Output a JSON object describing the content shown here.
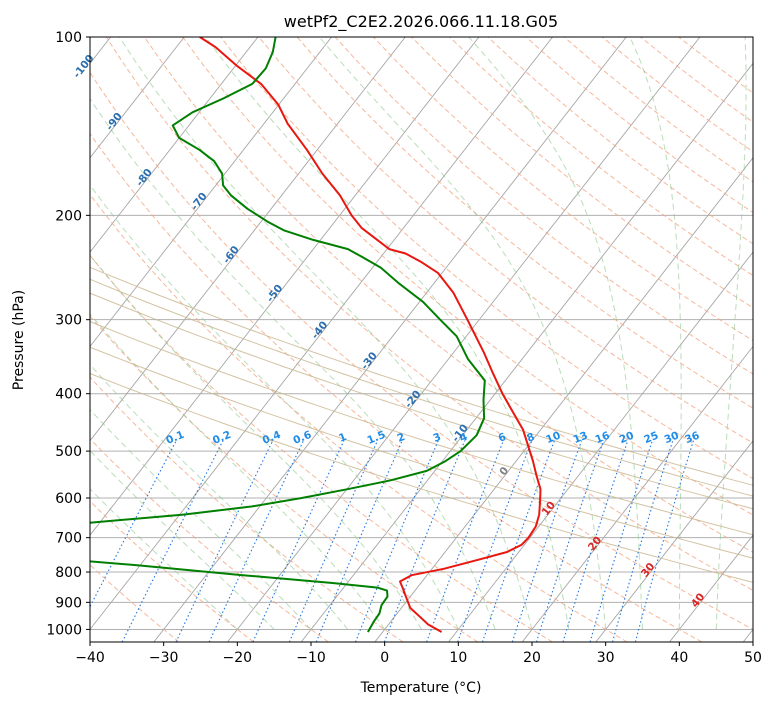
{
  "chart_data": {
    "type": "line",
    "title": "wetPf2_C2E2.2026.066.11.18.G05",
    "xlabel": "Temperature (°C)",
    "ylabel": "Pressure (hPa)",
    "xlim": [
      -40,
      50
    ],
    "ylim": [
      1050,
      100
    ],
    "y_scale": "log",
    "skew_deg_per_decade": 62.8,
    "grid": true,
    "x_ticks": [
      "−40",
      "−30",
      "−20",
      "−10",
      "0",
      "10",
      "20",
      "30",
      "40",
      "50"
    ],
    "x_tick_values": [
      -40,
      -30,
      -20,
      -10,
      0,
      10,
      20,
      30,
      40,
      50
    ],
    "y_ticks": [
      "100",
      "200",
      "300",
      "400",
      "500",
      "600",
      "700",
      "800",
      "900",
      "1000"
    ],
    "y_tick_values": [
      100,
      200,
      300,
      400,
      500,
      600,
      700,
      800,
      900,
      1000
    ],
    "series": [
      {
        "kind": "temperature",
        "color": "#e8170f",
        "points": [
          [
            1010,
            8.0
          ],
          [
            980,
            5.3
          ],
          [
            950,
            3.3
          ],
          [
            920,
            1.2
          ],
          [
            880,
            -0.6
          ],
          [
            850,
            -2.0
          ],
          [
            830,
            -3.0
          ],
          [
            810,
            -2.1
          ],
          [
            790,
            1.6
          ],
          [
            760,
            5.7
          ],
          [
            740,
            8.4
          ],
          [
            720,
            9.6
          ],
          [
            700,
            9.8
          ],
          [
            670,
            9.6
          ],
          [
            640,
            8.8
          ],
          [
            610,
            7.6
          ],
          [
            580,
            6.3
          ],
          [
            550,
            4.3
          ],
          [
            520,
            2.3
          ],
          [
            500,
            0.8
          ],
          [
            460,
            -2.4
          ],
          [
            430,
            -5.6
          ],
          [
            400,
            -9.0
          ],
          [
            370,
            -12.4
          ],
          [
            340,
            -16.0
          ],
          [
            300,
            -21.6
          ],
          [
            270,
            -26.4
          ],
          [
            250,
            -30.6
          ],
          [
            240,
            -33.9
          ],
          [
            232,
            -37.0
          ],
          [
            228,
            -39.7
          ],
          [
            220,
            -42.3
          ],
          [
            210,
            -45.7
          ],
          [
            200,
            -48.4
          ],
          [
            185,
            -52.1
          ],
          [
            170,
            -56.8
          ],
          [
            155,
            -61.4
          ],
          [
            140,
            -66.8
          ],
          [
            130,
            -70.1
          ],
          [
            120,
            -74.6
          ],
          [
            112,
            -79.7
          ],
          [
            104,
            -84.7
          ],
          [
            100,
            -87.9
          ]
        ]
      },
      {
        "kind": "dewpoint",
        "color": "#007f00",
        "points": [
          [
            1010,
            -2.0
          ],
          [
            970,
            -2.3
          ],
          [
            940,
            -2.4
          ],
          [
            910,
            -3.0
          ],
          [
            880,
            -3.1
          ],
          [
            860,
            -3.8
          ],
          [
            850,
            -5.4
          ],
          [
            835,
            -12.0
          ],
          [
            810,
            -25.0
          ],
          [
            780,
            -40.0
          ],
          [
            750,
            -57.5
          ],
          [
            720,
            -63.0
          ],
          [
            700,
            -63.5
          ],
          [
            680,
            -59.5
          ],
          [
            660,
            -51.0
          ],
          [
            640,
            -39.5
          ],
          [
            620,
            -31.0
          ],
          [
            600,
            -25.2
          ],
          [
            580,
            -20.0
          ],
          [
            560,
            -15.0
          ],
          [
            540,
            -11.1
          ],
          [
            520,
            -9.6
          ],
          [
            500,
            -8.6
          ],
          [
            470,
            -8.1
          ],
          [
            440,
            -8.9
          ],
          [
            410,
            -10.9
          ],
          [
            380,
            -12.8
          ],
          [
            350,
            -17.3
          ],
          [
            320,
            -21.3
          ],
          [
            300,
            -25.3
          ],
          [
            280,
            -29.5
          ],
          [
            260,
            -34.9
          ],
          [
            245,
            -38.9
          ],
          [
            235,
            -42.6
          ],
          [
            228,
            -45.3
          ],
          [
            220,
            -51.0
          ],
          [
            212,
            -56.0
          ],
          [
            205,
            -59.1
          ],
          [
            195,
            -63.2
          ],
          [
            185,
            -66.9
          ],
          [
            178,
            -69.0
          ],
          [
            170,
            -70.4
          ],
          [
            162,
            -72.8
          ],
          [
            155,
            -76.0
          ],
          [
            148,
            -80.0
          ],
          [
            141,
            -82.2
          ],
          [
            134,
            -80.9
          ],
          [
            127,
            -78.2
          ],
          [
            120,
            -75.8
          ],
          [
            113,
            -75.6
          ],
          [
            106,
            -76.4
          ],
          [
            100,
            -77.6
          ]
        ]
      }
    ],
    "dry_adiabats_theta_c": [
      -30,
      -20,
      -10,
      0,
      10,
      20,
      30,
      40,
      50,
      60,
      70,
      80,
      90,
      100,
      110,
      120,
      130,
      140,
      150,
      160,
      170,
      180,
      190,
      200,
      210
    ],
    "moist_adiabats_start_c": [
      -20,
      -15,
      -10,
      -5,
      0,
      5,
      10,
      15,
      20,
      25,
      30,
      35,
      40,
      45,
      50
    ],
    "isotherm_values_c": [
      -100,
      -90,
      -80,
      -70,
      -60,
      -50,
      -40,
      -30,
      -20,
      -10,
      0,
      10,
      20,
      30,
      40
    ],
    "mixing_ratio_values": [
      0.1,
      0.2,
      0.4,
      0.6,
      1,
      1.5,
      2,
      3,
      4,
      6,
      8,
      10,
      13,
      16,
      20,
      25,
      30,
      36
    ],
    "isotherm_labels": [
      {
        "t": -100,
        "p": 113,
        "text": "-100",
        "color": "#2c6fb0"
      },
      {
        "t": -90,
        "p": 140,
        "text": "-90",
        "color": "#2c6fb0"
      },
      {
        "t": -80,
        "p": 174,
        "text": "-80",
        "color": "#2c6fb0"
      },
      {
        "t": -70,
        "p": 191,
        "text": "-70",
        "color": "#2c6fb0"
      },
      {
        "t": -60,
        "p": 235,
        "text": "-60",
        "color": "#2c6fb0"
      },
      {
        "t": -50,
        "p": 273,
        "text": "-50",
        "color": "#2c6fb0"
      },
      {
        "t": -40,
        "p": 315,
        "text": "-40",
        "color": "#2c6fb0"
      },
      {
        "t": -30,
        "p": 355,
        "text": "-30",
        "color": "#2c6fb0"
      },
      {
        "t": -20,
        "p": 412,
        "text": "-20",
        "color": "#2c6fb0"
      },
      {
        "t": -10,
        "p": 470,
        "text": "-10",
        "color": "#2c6fb0"
      },
      {
        "t": 0,
        "p": 545,
        "text": "0",
        "color": "#7f7f7f"
      },
      {
        "t": 10,
        "p": 630,
        "text": "10",
        "color": "#d62728"
      },
      {
        "t": 20,
        "p": 722,
        "text": "20",
        "color": "#d62728"
      },
      {
        "t": 30,
        "p": 800,
        "text": "30",
        "color": "#d62728"
      },
      {
        "t": 40,
        "p": 900,
        "text": "40",
        "color": "#d62728"
      }
    ],
    "mixing_ratio_labels": [
      "0.1",
      "0.2",
      "0.4",
      "0.6",
      "1",
      "1.5",
      "2",
      "3",
      "4",
      "6",
      "8",
      "10",
      "13",
      "16",
      "20",
      "25",
      "30",
      "36"
    ],
    "mixing_ratio_label_p": 480,
    "line_colors": {
      "grid": "#b0b0b0",
      "skewed_isotherms": "#a6a6a6",
      "dry_adiabats": "#f4a582",
      "moist_adiabats": "#8cc68c",
      "mixing_ratio": "#1f77e4",
      "mixing_ratio_label": "#1f8ce8",
      "stratosphere_adiabats": "#c8b48c"
    }
  }
}
